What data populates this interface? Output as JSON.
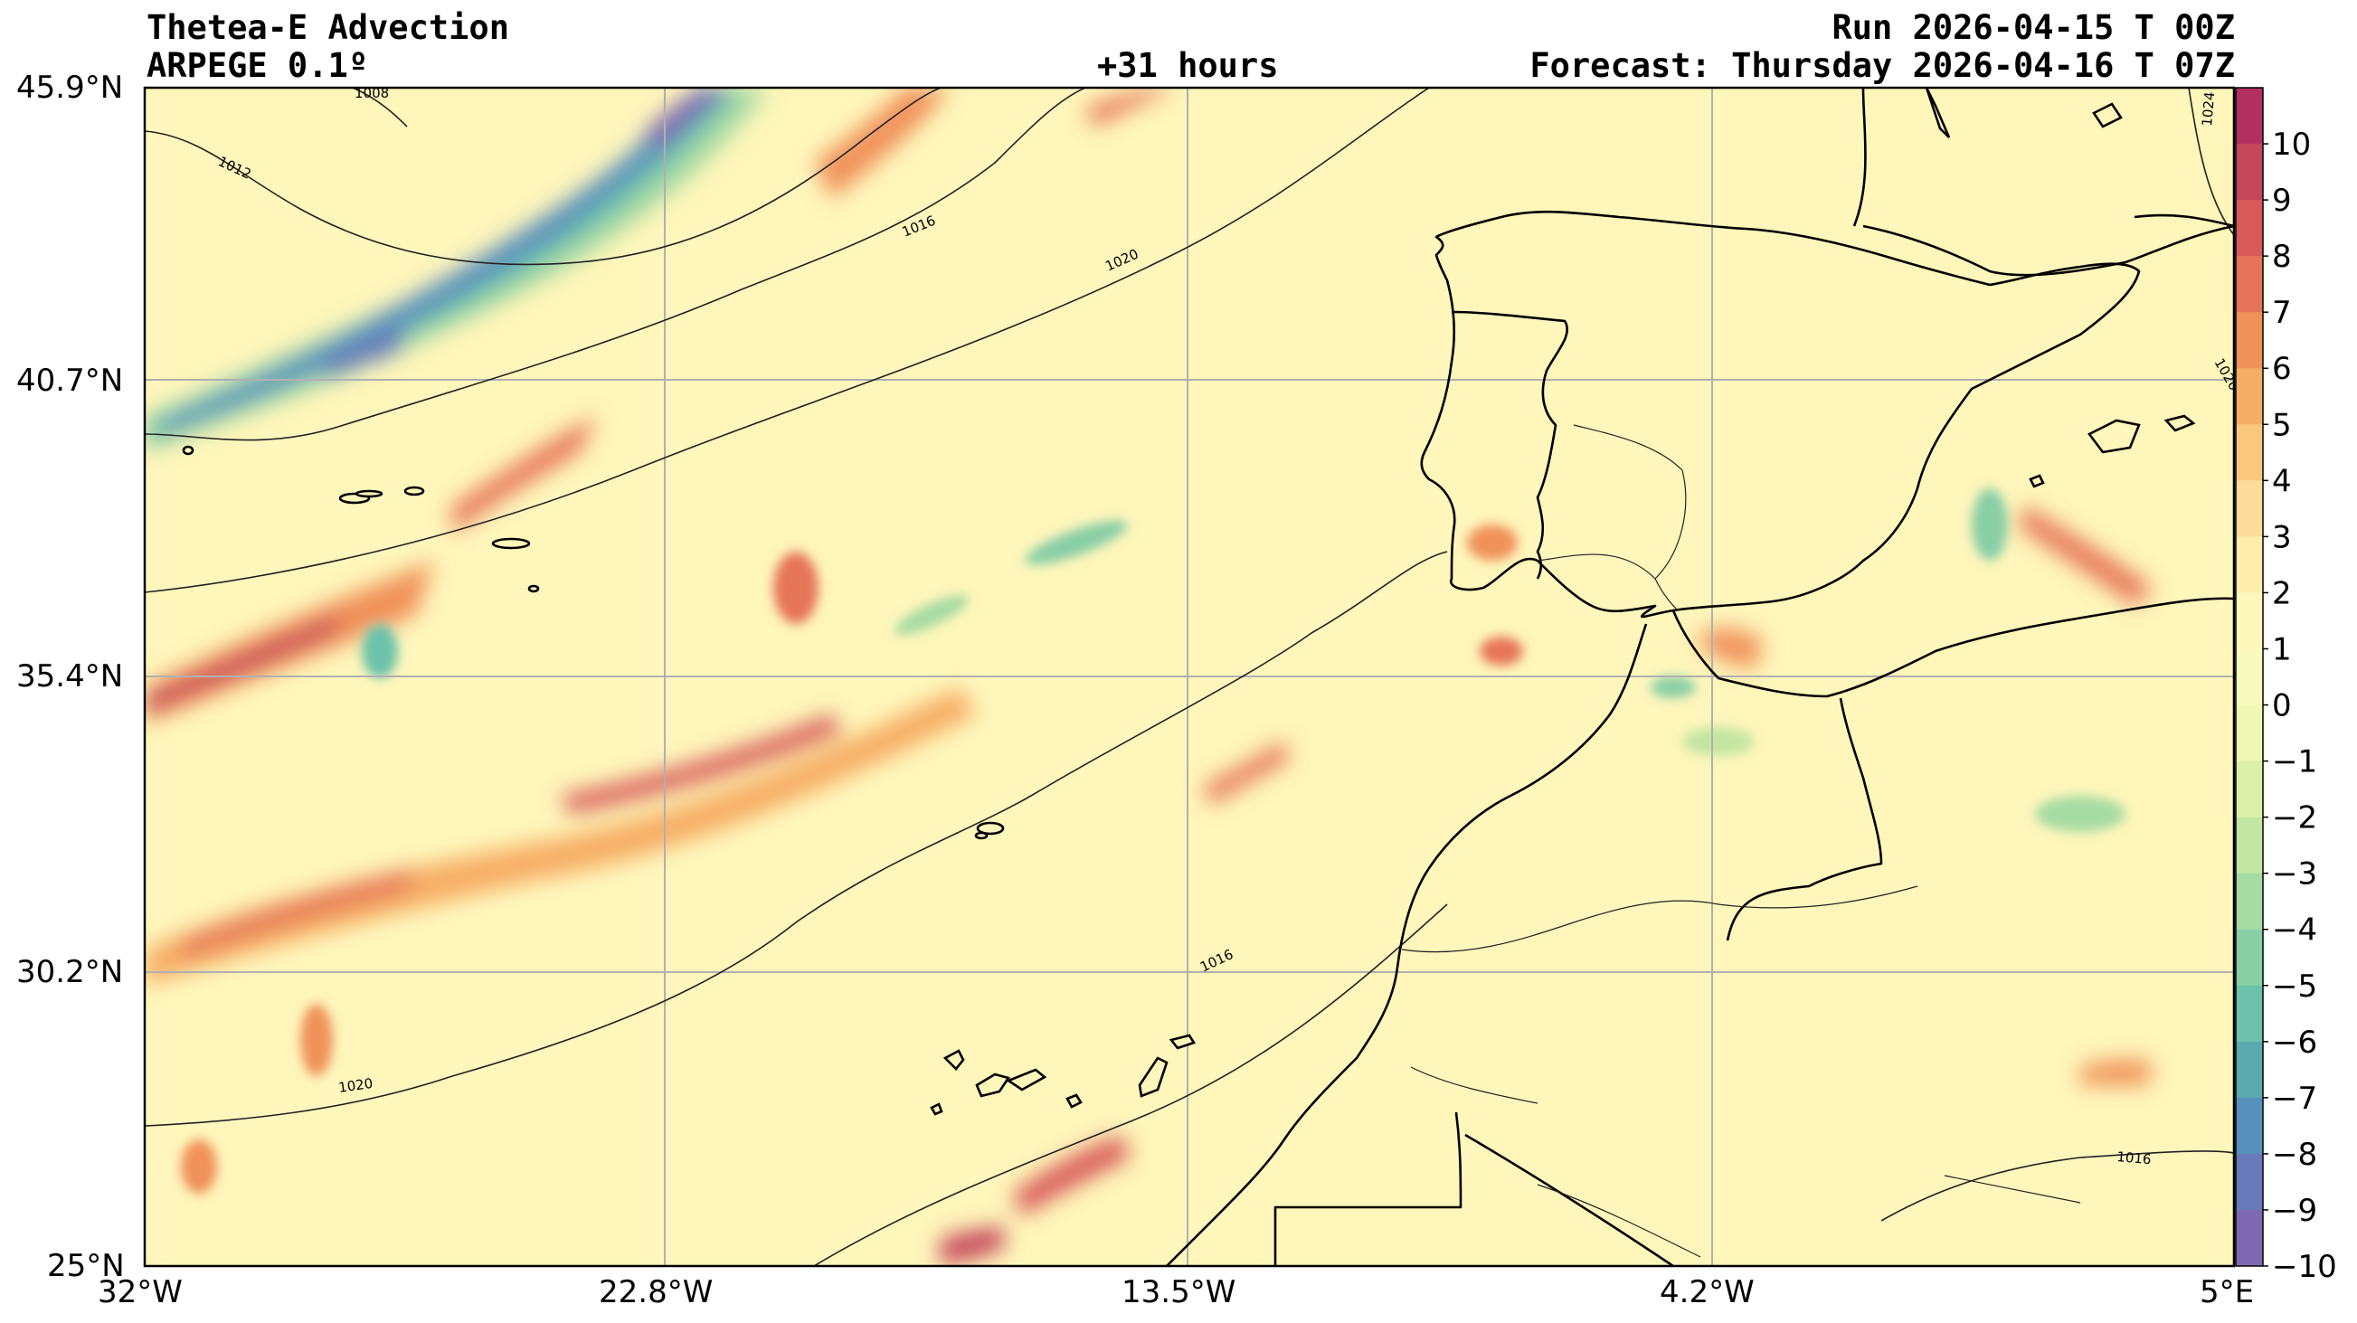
{
  "header": {
    "title": "Thetea-E Advection",
    "model": "ARPEGE 0.1º",
    "lead": "+31 hours",
    "run": "Run 2026-04-15 T 00Z",
    "forecast": "Forecast: Thursday 2026-04-16 T 07Z"
  },
  "axes": {
    "lat_ticks": [
      "45.9°N",
      "40.7°N",
      "35.4°N",
      "30.2°N",
      "25°N"
    ],
    "lon_ticks": [
      "32°W",
      "22.8°W",
      "13.5°W",
      "4.2°W",
      "5°E"
    ]
  },
  "colorbar": {
    "labels": [
      "10",
      "9",
      "8",
      "7",
      "6",
      "5",
      "4",
      "3",
      "2",
      "1",
      "0",
      "−1",
      "−2",
      "−3",
      "−4",
      "−5",
      "−6",
      "−7",
      "−8",
      "−9",
      "−10"
    ],
    "colors": [
      "#b2305f",
      "#c5475c",
      "#d85b5a",
      "#e67458",
      "#f0925a",
      "#f6ae66",
      "#fac77f",
      "#fcdc98",
      "#fdecab",
      "#fef8bc",
      "#f9fbbd",
      "#eef7b4",
      "#dcf0a8",
      "#c3e6a2",
      "#a6dba3",
      "#88cfa6",
      "#6cc2aa",
      "#5aaab0",
      "#5890bc",
      "#6a79b9",
      "#7f68b2"
    ]
  },
  "isobars": {
    "labels": [
      "1008",
      "1012",
      "1016",
      "1020",
      "1016",
      "1020",
      "1016",
      "1024",
      "1020"
    ]
  }
}
